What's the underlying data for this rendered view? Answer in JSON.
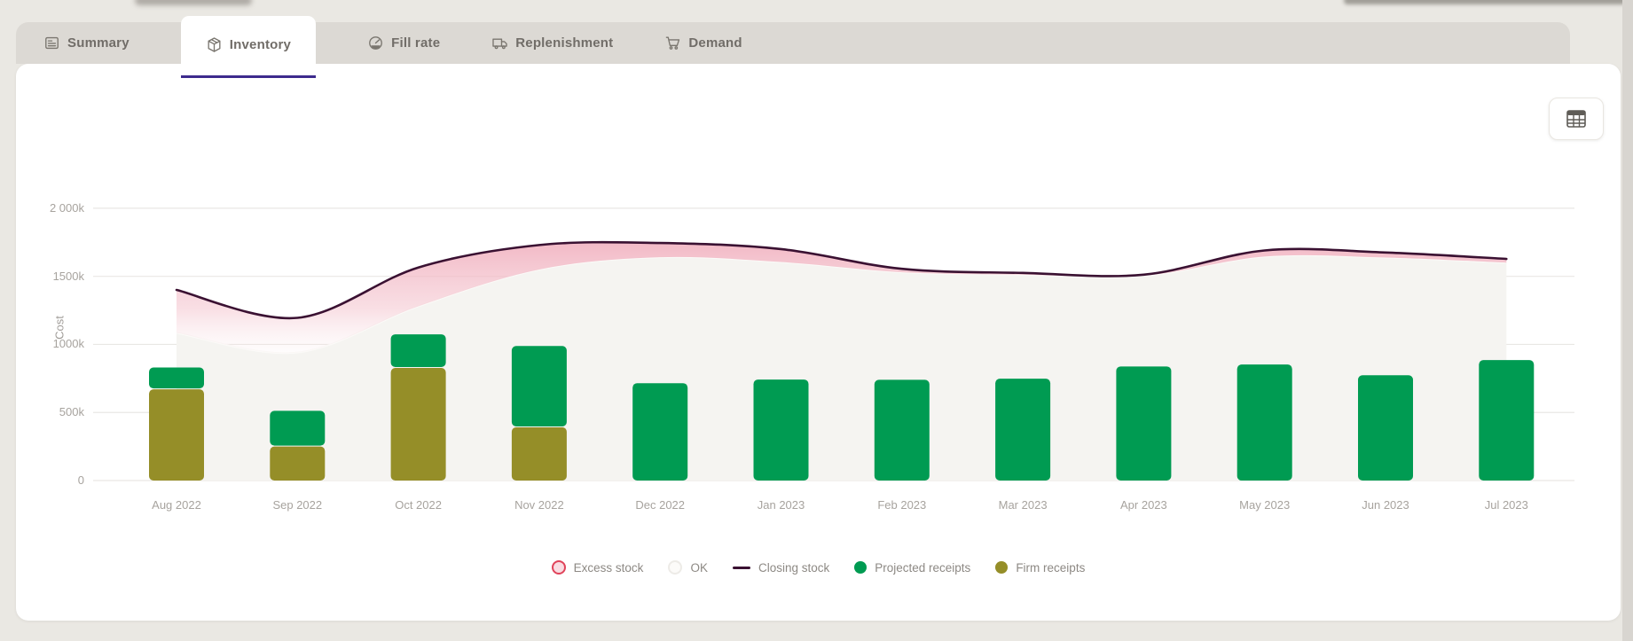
{
  "tab_bar": {
    "tabs": [
      {
        "label": "Summary",
        "icon": "report-icon",
        "active": false
      },
      {
        "label": "Inventory",
        "icon": "package-icon",
        "active": true
      },
      {
        "label": "Fill rate",
        "icon": "gauge-icon",
        "active": false
      },
      {
        "label": "Replenishment",
        "icon": "truck-icon",
        "active": false
      },
      {
        "label": "Demand",
        "icon": "cart-icon",
        "active": false
      }
    ],
    "active_tab": "Inventory",
    "active_underline_color": "#3d2b8d"
  },
  "toolbar": {
    "table_button": "table-view"
  },
  "chart_data": {
    "type": "combo: stacked bars + smoothed line + threshold areas",
    "title": "",
    "ylabel": "Cost",
    "xlabel": "",
    "grid": true,
    "legend_position": "bottom-center",
    "y_ticks": [
      "2 000k",
      "1500k",
      "1000k",
      "500k",
      "0"
    ],
    "y_tick_values_k": [
      2000,
      1500,
      1000,
      500,
      0
    ],
    "ylim_k": [
      0,
      2050
    ],
    "categories": [
      "Aug 2022",
      "Sep 2022",
      "Oct 2022",
      "Nov 2022",
      "Dec 2022",
      "Jan 2023",
      "Feb 2023",
      "Mar 2023",
      "Apr 2023",
      "May 2023",
      "Jun 2023",
      "Jul 2023"
    ],
    "series": [
      {
        "name": "Firm receipts",
        "type": "bar",
        "color": "#958e28",
        "values_k": [
          670,
          250,
          827,
          391,
          0,
          0,
          0,
          0,
          0,
          0,
          0,
          0
        ]
      },
      {
        "name": "Projected receipts",
        "type": "bar",
        "color": "#009b52",
        "values_k": [
          160,
          262,
          247,
          597,
          715,
          742,
          740,
          748,
          838,
          852,
          773,
          885
        ]
      },
      {
        "name": "Closing stock",
        "type": "line",
        "color": "#3a1132",
        "values_k": [
          1400,
          1195,
          1565,
          1730,
          1745,
          1700,
          1555,
          1525,
          1512,
          1690,
          1675,
          1628
        ]
      },
      {
        "name": "Excess stock",
        "type": "area-band-between-boundary-and-line",
        "color": "#f2b9c5",
        "boundary_values_k": [
          1085,
          940,
          1280,
          1550,
          1640,
          1605,
          1530,
          1512,
          1505,
          1645,
          1638,
          1600
        ]
      },
      {
        "name": "OK",
        "type": "area-below-boundary",
        "color": "#f5f4f1"
      }
    ],
    "legend": [
      {
        "label": "Excess stock",
        "marker": "ring",
        "color": "#e0435a",
        "fill": "#f9dce2"
      },
      {
        "label": "OK",
        "marker": "ring",
        "color": "#edebe7",
        "fill": "#fcfbf9"
      },
      {
        "label": "Closing stock",
        "marker": "line",
        "color": "#3a1132",
        "fill": "#3a1132"
      },
      {
        "label": "Projected receipts",
        "marker": "dot",
        "color": "#009b52",
        "fill": "#009b52"
      },
      {
        "label": "Firm receipts",
        "marker": "dot",
        "color": "#958e28",
        "fill": "#958e28"
      }
    ],
    "colors": {
      "grid_line": "#e9e7e4",
      "axis_text": "#a7a39e",
      "ok_area": "#f5f4f1",
      "excess_top": "#f1b3c1",
      "closing_line": "#3a1132"
    }
  }
}
